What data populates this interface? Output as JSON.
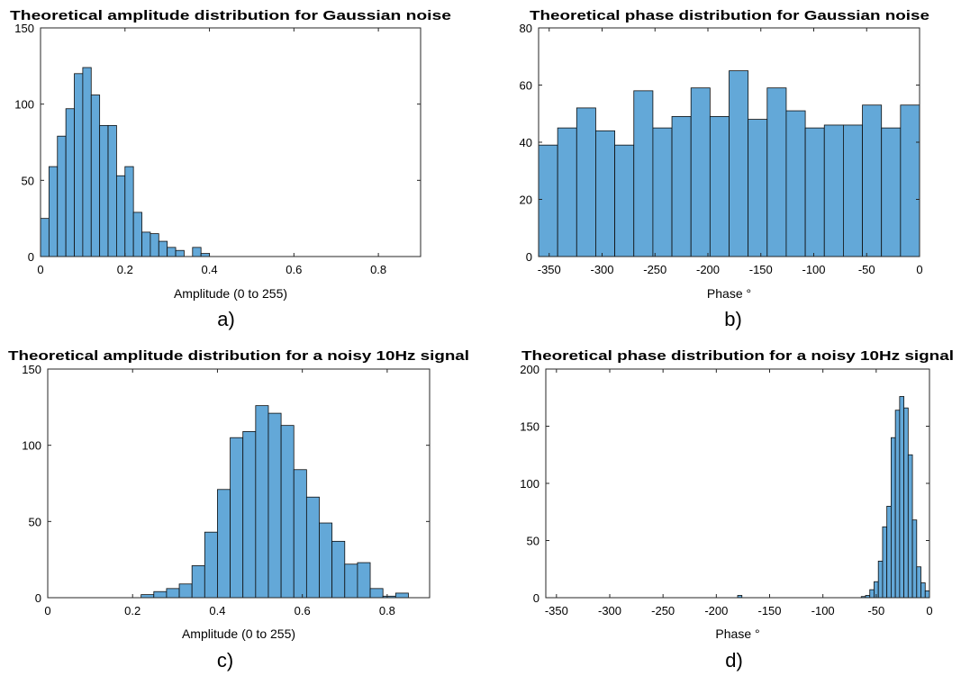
{
  "chart_data": [
    {
      "type": "bar",
      "title": "Theoretical amplitude distribution for Gaussian noise",
      "xlabel": "Amplitude (0 to 255)",
      "ylabel": "",
      "caption": "a)",
      "xlim": [
        0,
        0.9
      ],
      "ylim": [
        0,
        150
      ],
      "xticks": [
        "0",
        "0.2",
        "0.4",
        "0.6",
        "0.8"
      ],
      "xtick_values": [
        0,
        0.2,
        0.4,
        0.6,
        0.8
      ],
      "yticks": [
        "0",
        "50",
        "100",
        "150"
      ],
      "ytick_values": [
        0,
        50,
        100,
        150
      ],
      "bin_start": 0,
      "bin_width": 0.02,
      "values": [
        25,
        59,
        79,
        97,
        120,
        124,
        106,
        86,
        86,
        53,
        59,
        29,
        16,
        15,
        10,
        6,
        4,
        0,
        6,
        2
      ]
    },
    {
      "type": "bar",
      "title": "Theoretical phase distribution for Gaussian noise",
      "xlabel": "Phase °",
      "ylabel": "",
      "caption": "b)",
      "xlim": [
        -360,
        0
      ],
      "ylim": [
        0,
        80
      ],
      "xticks": [
        "-350",
        "-300",
        "-250",
        "-200",
        "-150",
        "-100",
        "-50",
        "0"
      ],
      "xtick_values": [
        -350,
        -300,
        -250,
        -200,
        -150,
        -100,
        -50,
        0
      ],
      "yticks": [
        "0",
        "20",
        "40",
        "60",
        "80"
      ],
      "ytick_values": [
        0,
        20,
        40,
        60,
        80
      ],
      "bin_start": -360,
      "bin_width": 18,
      "values": [
        39,
        45,
        52,
        44,
        39,
        58,
        45,
        49,
        59,
        49,
        65,
        48,
        59,
        51,
        45,
        46,
        46,
        53,
        45,
        53
      ]
    },
    {
      "type": "bar",
      "title": "Theoretical amplitude distribution for a noisy 10Hz signal",
      "xlabel": "Amplitude (0 to 255)",
      "ylabel": "",
      "caption": "c)",
      "xlim": [
        0,
        0.9
      ],
      "ylim": [
        0,
        150
      ],
      "xticks": [
        "0",
        "0.2",
        "0.4",
        "0.6",
        "0.8"
      ],
      "xtick_values": [
        0,
        0.2,
        0.4,
        0.6,
        0.8
      ],
      "yticks": [
        "0",
        "50",
        "100",
        "150"
      ],
      "ytick_values": [
        0,
        50,
        100,
        150
      ],
      "bin_start": 0.22,
      "bin_width": 0.03,
      "values": [
        2,
        4,
        6,
        9,
        21,
        43,
        71,
        105,
        109,
        126,
        121,
        113,
        84,
        66,
        49,
        37,
        22,
        23,
        6,
        1,
        3
      ]
    },
    {
      "type": "bar",
      "title": "Theoretical phase distribution for a noisy 10Hz signal",
      "xlabel": "Phase °",
      "ylabel": "",
      "caption": "d)",
      "xlim": [
        -360,
        0
      ],
      "ylim": [
        0,
        200
      ],
      "xticks": [
        "-350",
        "-300",
        "-250",
        "-200",
        "-150",
        "-100",
        "-50",
        "0"
      ],
      "xtick_values": [
        -350,
        -300,
        -250,
        -200,
        -150,
        -100,
        -50,
        0
      ],
      "yticks": [
        "0",
        "50",
        "100",
        "150",
        "200"
      ],
      "ytick_values": [
        0,
        50,
        100,
        150,
        200
      ],
      "outlier_bars": [
        {
          "x": -180,
          "width": 4,
          "value": 2
        }
      ],
      "bin_start": -64,
      "bin_width": 4,
      "values": [
        1,
        2,
        7,
        14,
        32,
        62,
        80,
        140,
        164,
        176,
        166,
        125,
        68,
        27,
        13,
        6
      ]
    }
  ]
}
